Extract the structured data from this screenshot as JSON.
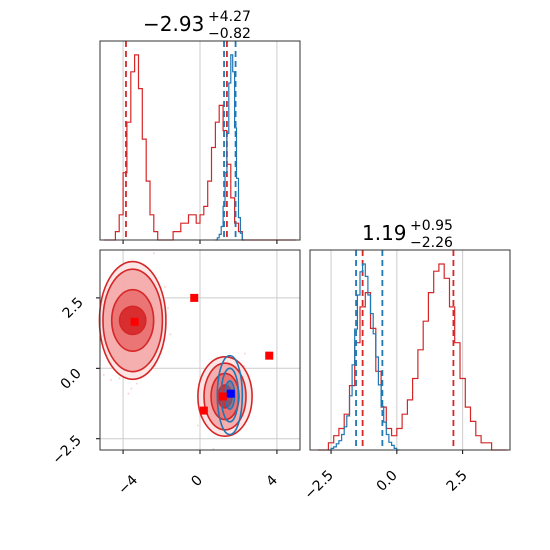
{
  "colors": {
    "red": "#d62728",
    "blue": "#1f77b4",
    "marker_red": "#ff0000",
    "marker_blue": "#0000ff",
    "grid": "#cccccc"
  },
  "chart_data": [
    {
      "type": "histogram",
      "panel": "top-left",
      "title": {
        "value": "−2.93",
        "upper": "+4.27",
        "lower": "−0.82"
      },
      "xlim": [
        -5.2,
        5.2
      ],
      "grid": true,
      "series": [
        {
          "color": "#d62728",
          "bin_edges": [
            -5.0,
            -4.8,
            -4.6,
            -4.4,
            -4.2,
            -4.0,
            -3.8,
            -3.6,
            -3.4,
            -3.2,
            -3.0,
            -2.8,
            -2.6,
            -2.4,
            -2.2,
            -2.0,
            -1.8,
            -1.6,
            -1.4,
            -1.2,
            -1.0,
            -0.8,
            -0.6,
            -0.4,
            -0.2,
            0.0,
            0.2,
            0.4,
            0.6,
            0.8,
            1.0,
            1.2,
            1.4,
            1.6,
            1.8,
            2.0,
            2.2,
            2.4,
            2.6,
            2.8,
            3.0,
            3.2,
            3.4,
            3.6,
            3.8,
            4.0,
            4.2,
            4.4,
            4.6,
            4.8,
            5.0
          ],
          "counts": [
            0,
            0,
            0,
            1,
            3,
            8,
            14,
            20,
            22,
            18,
            12,
            7,
            3,
            1,
            0,
            0,
            0,
            0,
            1,
            1,
            2,
            2,
            3,
            3,
            2,
            3,
            4,
            7,
            11,
            14,
            16,
            13,
            9,
            5,
            2,
            1,
            0,
            0,
            0,
            0,
            0,
            0,
            0,
            0,
            0,
            0,
            0,
            0,
            0,
            0
          ],
          "quantile_lines": [
            -3.85,
            1.4
          ]
        },
        {
          "color": "#1f77b4",
          "bin_edges": [
            0.8,
            0.9,
            1.0,
            1.1,
            1.2,
            1.3,
            1.4,
            1.5,
            1.6,
            1.7,
            1.8,
            1.9,
            2.0,
            2.1,
            2.2,
            2.3
          ],
          "counts": [
            0,
            2,
            5,
            12,
            30,
            60,
            95,
            140,
            165,
            150,
            100,
            55,
            20,
            6,
            0
          ],
          "quantile_lines": [
            1.25,
            1.85
          ]
        }
      ]
    },
    {
      "type": "histogram",
      "panel": "bottom-right",
      "title": {
        "value": "1.19",
        "upper": "+0.95",
        "lower": "−2.26"
      },
      "xlim": [
        -3.3,
        4.3
      ],
      "xticks": [
        "−2.5",
        "0.0",
        "2.5"
      ],
      "grid": true,
      "series": [
        {
          "color": "#d62728",
          "bin_edges": [
            -3.0,
            -2.8,
            -2.6,
            -2.4,
            -2.2,
            -2.0,
            -1.8,
            -1.6,
            -1.4,
            -1.2,
            -1.0,
            -0.8,
            -0.6,
            -0.4,
            -0.2,
            0.0,
            0.2,
            0.4,
            0.6,
            0.8,
            1.0,
            1.2,
            1.4,
            1.6,
            1.8,
            2.0,
            2.2,
            2.4,
            2.6,
            2.8,
            3.0,
            3.2,
            3.4,
            3.6,
            3.8,
            4.0,
            4.2
          ],
          "counts": [
            0,
            0,
            1,
            2,
            3,
            5,
            9,
            15,
            20,
            22,
            17,
            11,
            6,
            3,
            2,
            3,
            5,
            7,
            10,
            14,
            18,
            22,
            25,
            26,
            24,
            20,
            15,
            10,
            6,
            4,
            2,
            1,
            1,
            0,
            0,
            0
          ],
          "quantile_lines": [
            -1.3,
            2.15
          ]
        },
        {
          "color": "#1f77b4",
          "bin_edges": [
            -2.6,
            -2.5,
            -2.4,
            -2.3,
            -2.2,
            -2.1,
            -2.0,
            -1.9,
            -1.8,
            -1.7,
            -1.6,
            -1.5,
            -1.4,
            -1.3,
            -1.2,
            -1.1,
            -1.0,
            -0.9,
            -0.8,
            -0.7,
            -0.6,
            -0.5,
            -0.4,
            -0.3,
            -0.2,
            -0.1,
            0.0,
            0.1
          ],
          "counts": [
            0,
            1,
            2,
            4,
            6,
            10,
            15,
            22,
            35,
            55,
            78,
            100,
            115,
            120,
            112,
            100,
            88,
            75,
            60,
            42,
            28,
            18,
            10,
            5,
            3,
            1,
            0
          ],
          "quantile_lines": [
            -1.55,
            -0.55
          ]
        }
      ]
    },
    {
      "type": "scatter-contour",
      "panel": "bottom-left",
      "xlim": [
        -5.2,
        5.2
      ],
      "ylim": [
        -2.9,
        4.2
      ],
      "xticks": [
        "−4",
        "0",
        "4"
      ],
      "yticks": [
        "−2.5",
        "0.0",
        "2.5"
      ],
      "grid": true,
      "red_modes": [
        {
          "cx": -3.5,
          "cy": 1.7,
          "rx": [
            0.75,
            1.2,
            1.7,
            1.9
          ],
          "ry": [
            0.55,
            1.2,
            2.0,
            2.3
          ]
        },
        {
          "cx": 1.3,
          "cy": -1.0,
          "rx": [
            0.4,
            0.8,
            1.2,
            1.55
          ],
          "ry": [
            0.45,
            0.9,
            1.3,
            1.55
          ]
        }
      ],
      "blue_mode": {
        "cx": 1.55,
        "cy": -0.95,
        "rx": [
          0.25,
          0.45,
          0.65
        ],
        "ry": [
          0.5,
          0.95,
          1.4
        ]
      },
      "markers": [
        {
          "x": -3.4,
          "y": 1.65,
          "color": "#ff0000"
        },
        {
          "x": -0.3,
          "y": 2.5,
          "color": "#ff0000"
        },
        {
          "x": 3.6,
          "y": 0.45,
          "color": "#ff0000"
        },
        {
          "x": 0.2,
          "y": -1.5,
          "color": "#ff0000"
        },
        {
          "x": 1.2,
          "y": -1.0,
          "color": "#ff0000"
        },
        {
          "x": 1.6,
          "y": -0.9,
          "color": "#0000ff"
        }
      ]
    }
  ],
  "top_left_xticks": [
    "−4",
    "0",
    "4"
  ]
}
